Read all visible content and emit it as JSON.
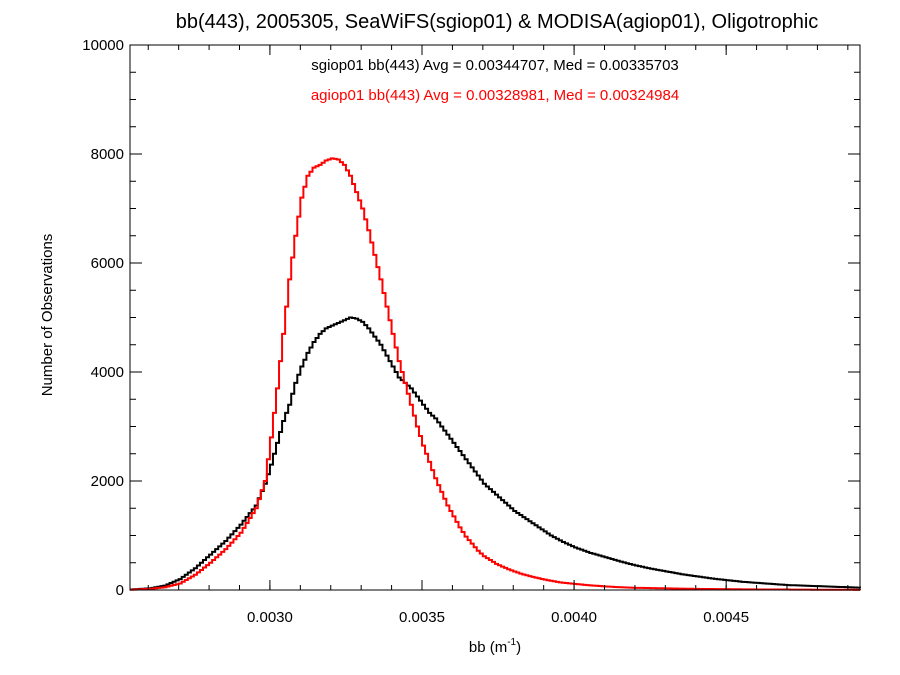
{
  "chart_data": {
    "type": "line",
    "title": "bb(443), 2005305, SeaWiFS(sgiop01) & MODISA(agiop01), Oligotrophic",
    "xlabel_main": "bb (m",
    "xlabel_sup": "-1",
    "xlabel_close": ")",
    "ylabel": "Number of Observations",
    "xlim": [
      0.00254,
      0.00494
    ],
    "ylim": [
      0,
      10000
    ],
    "x_ticks": [
      0.003,
      0.0035,
      0.004,
      0.0045
    ],
    "x_tick_labels": [
      "0.0030",
      "0.0035",
      "0.0040",
      "0.0045"
    ],
    "y_ticks": [
      0,
      2000,
      4000,
      6000,
      8000,
      10000
    ],
    "y_tick_labels": [
      "0",
      "2000",
      "4000",
      "6000",
      "8000",
      "10000"
    ],
    "grid": false,
    "annotations": [
      {
        "text": "sgiop01 bb(443) Avg = 0.00344707, Med = 0.00335703",
        "color": "#000000"
      },
      {
        "text": "agiop01 bb(443) Avg = 0.00328981, Med = 0.00324984",
        "color": "#ff0000"
      }
    ],
    "series": [
      {
        "color": "#000000",
        "points": [
          [
            0.00254,
            10
          ],
          [
            0.0026,
            30
          ],
          [
            0.00265,
            80
          ],
          [
            0.0027,
            200
          ],
          [
            0.00275,
            400
          ],
          [
            0.0028,
            650
          ],
          [
            0.00285,
            900
          ],
          [
            0.0029,
            1200
          ],
          [
            0.00295,
            1550
          ],
          [
            0.00298,
            1950
          ],
          [
            0.003,
            2300
          ],
          [
            0.00302,
            2700
          ],
          [
            0.00304,
            3100
          ],
          [
            0.00306,
            3400
          ],
          [
            0.00308,
            3800
          ],
          [
            0.0031,
            4100
          ],
          [
            0.00312,
            4350
          ],
          [
            0.00314,
            4550
          ],
          [
            0.00316,
            4700
          ],
          [
            0.00318,
            4800
          ],
          [
            0.0032,
            4850
          ],
          [
            0.00322,
            4900
          ],
          [
            0.00324,
            4950
          ],
          [
            0.00326,
            5000
          ],
          [
            0.00328,
            4980
          ],
          [
            0.0033,
            4920
          ],
          [
            0.00332,
            4800
          ],
          [
            0.00334,
            4650
          ],
          [
            0.00336,
            4500
          ],
          [
            0.00338,
            4300
          ],
          [
            0.0034,
            4100
          ],
          [
            0.00342,
            3900
          ],
          [
            0.00344,
            3800
          ],
          [
            0.00346,
            3700
          ],
          [
            0.00348,
            3550
          ],
          [
            0.0035,
            3400
          ],
          [
            0.00352,
            3250
          ],
          [
            0.00354,
            3150
          ],
          [
            0.00356,
            3000
          ],
          [
            0.00358,
            2850
          ],
          [
            0.0036,
            2700
          ],
          [
            0.00362,
            2550
          ],
          [
            0.00364,
            2400
          ],
          [
            0.00366,
            2250
          ],
          [
            0.00368,
            2100
          ],
          [
            0.0037,
            1950
          ],
          [
            0.00372,
            1850
          ],
          [
            0.00374,
            1750
          ],
          [
            0.00376,
            1650
          ],
          [
            0.00378,
            1550
          ],
          [
            0.0038,
            1450
          ],
          [
            0.00384,
            1300
          ],
          [
            0.00388,
            1150
          ],
          [
            0.00392,
            1000
          ],
          [
            0.00396,
            880
          ],
          [
            0.004,
            780
          ],
          [
            0.00405,
            680
          ],
          [
            0.0041,
            600
          ],
          [
            0.00415,
            520
          ],
          [
            0.0042,
            450
          ],
          [
            0.00425,
            390
          ],
          [
            0.0043,
            340
          ],
          [
            0.00435,
            290
          ],
          [
            0.0044,
            250
          ],
          [
            0.00445,
            210
          ],
          [
            0.0045,
            180
          ],
          [
            0.00455,
            150
          ],
          [
            0.0046,
            130
          ],
          [
            0.00465,
            110
          ],
          [
            0.0047,
            90
          ],
          [
            0.00475,
            80
          ],
          [
            0.0048,
            70
          ],
          [
            0.00485,
            60
          ],
          [
            0.0049,
            50
          ],
          [
            0.00494,
            40
          ]
        ]
      },
      {
        "color": "#ff0000",
        "points": [
          [
            0.00254,
            5
          ],
          [
            0.0026,
            20
          ],
          [
            0.00265,
            50
          ],
          [
            0.0027,
            120
          ],
          [
            0.00275,
            280
          ],
          [
            0.0028,
            500
          ],
          [
            0.00285,
            750
          ],
          [
            0.0029,
            1050
          ],
          [
            0.00295,
            1500
          ],
          [
            0.00298,
            2000
          ],
          [
            0.003,
            2800
          ],
          [
            0.00302,
            3700
          ],
          [
            0.00304,
            4700
          ],
          [
            0.00306,
            5700
          ],
          [
            0.00308,
            6500
          ],
          [
            0.0031,
            7200
          ],
          [
            0.00312,
            7600
          ],
          [
            0.00314,
            7750
          ],
          [
            0.00316,
            7800
          ],
          [
            0.00318,
            7880
          ],
          [
            0.0032,
            7920
          ],
          [
            0.00322,
            7900
          ],
          [
            0.00324,
            7800
          ],
          [
            0.00326,
            7600
          ],
          [
            0.00328,
            7300
          ],
          [
            0.0033,
            7000
          ],
          [
            0.00332,
            6600
          ],
          [
            0.00334,
            6150
          ],
          [
            0.00336,
            5700
          ],
          [
            0.00338,
            5200
          ],
          [
            0.0034,
            4700
          ],
          [
            0.00342,
            4200
          ],
          [
            0.00344,
            3800
          ],
          [
            0.00346,
            3400
          ],
          [
            0.00348,
            3000
          ],
          [
            0.0035,
            2650
          ],
          [
            0.00352,
            2350
          ],
          [
            0.00354,
            2050
          ],
          [
            0.00356,
            1800
          ],
          [
            0.00358,
            1550
          ],
          [
            0.0036,
            1350
          ],
          [
            0.00362,
            1150
          ],
          [
            0.00364,
            980
          ],
          [
            0.00366,
            850
          ],
          [
            0.00368,
            720
          ],
          [
            0.0037,
            620
          ],
          [
            0.00374,
            480
          ],
          [
            0.00378,
            380
          ],
          [
            0.00382,
            300
          ],
          [
            0.00386,
            240
          ],
          [
            0.0039,
            190
          ],
          [
            0.00395,
            140
          ],
          [
            0.004,
            110
          ],
          [
            0.00405,
            85
          ],
          [
            0.0041,
            65
          ],
          [
            0.00415,
            50
          ],
          [
            0.0042,
            40
          ],
          [
            0.0043,
            30
          ],
          [
            0.0044,
            20
          ],
          [
            0.0045,
            15
          ],
          [
            0.0046,
            10
          ],
          [
            0.0047,
            8
          ],
          [
            0.0048,
            5
          ],
          [
            0.00494,
            3
          ]
        ]
      }
    ]
  }
}
